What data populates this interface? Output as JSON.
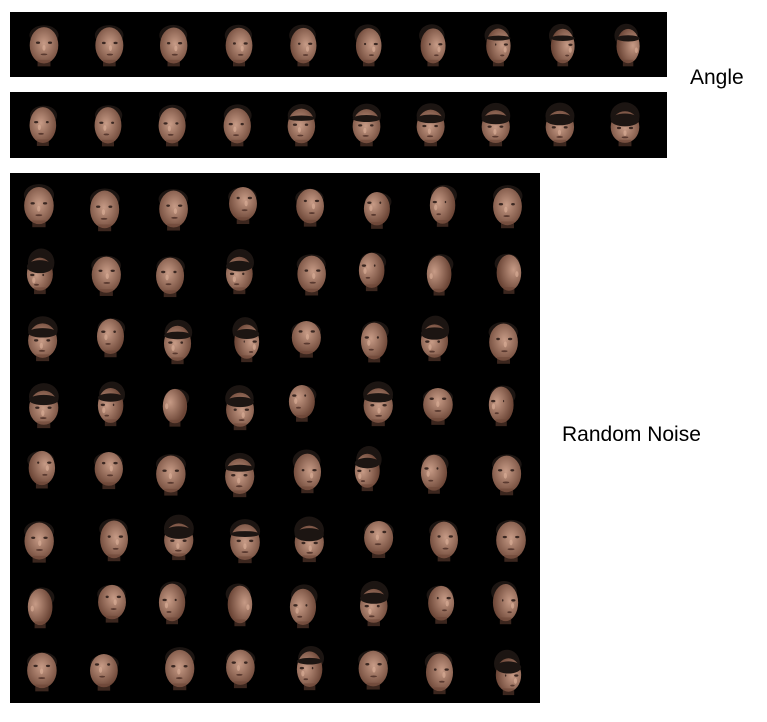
{
  "labels": {
    "angle": "Angle",
    "random_noise": "Random Noise"
  },
  "colors": {
    "background": "#ffffff",
    "panel": "#000000",
    "skin_light": "#c79b86",
    "skin_shadow": "#6b4536",
    "hair": "#1c1512"
  },
  "angle_rows": [
    {
      "name": "angle-row-1",
      "count": 10
    },
    {
      "name": "angle-row-2",
      "count": 10
    }
  ],
  "noise_grid": {
    "rows": 8,
    "cols": 8
  }
}
